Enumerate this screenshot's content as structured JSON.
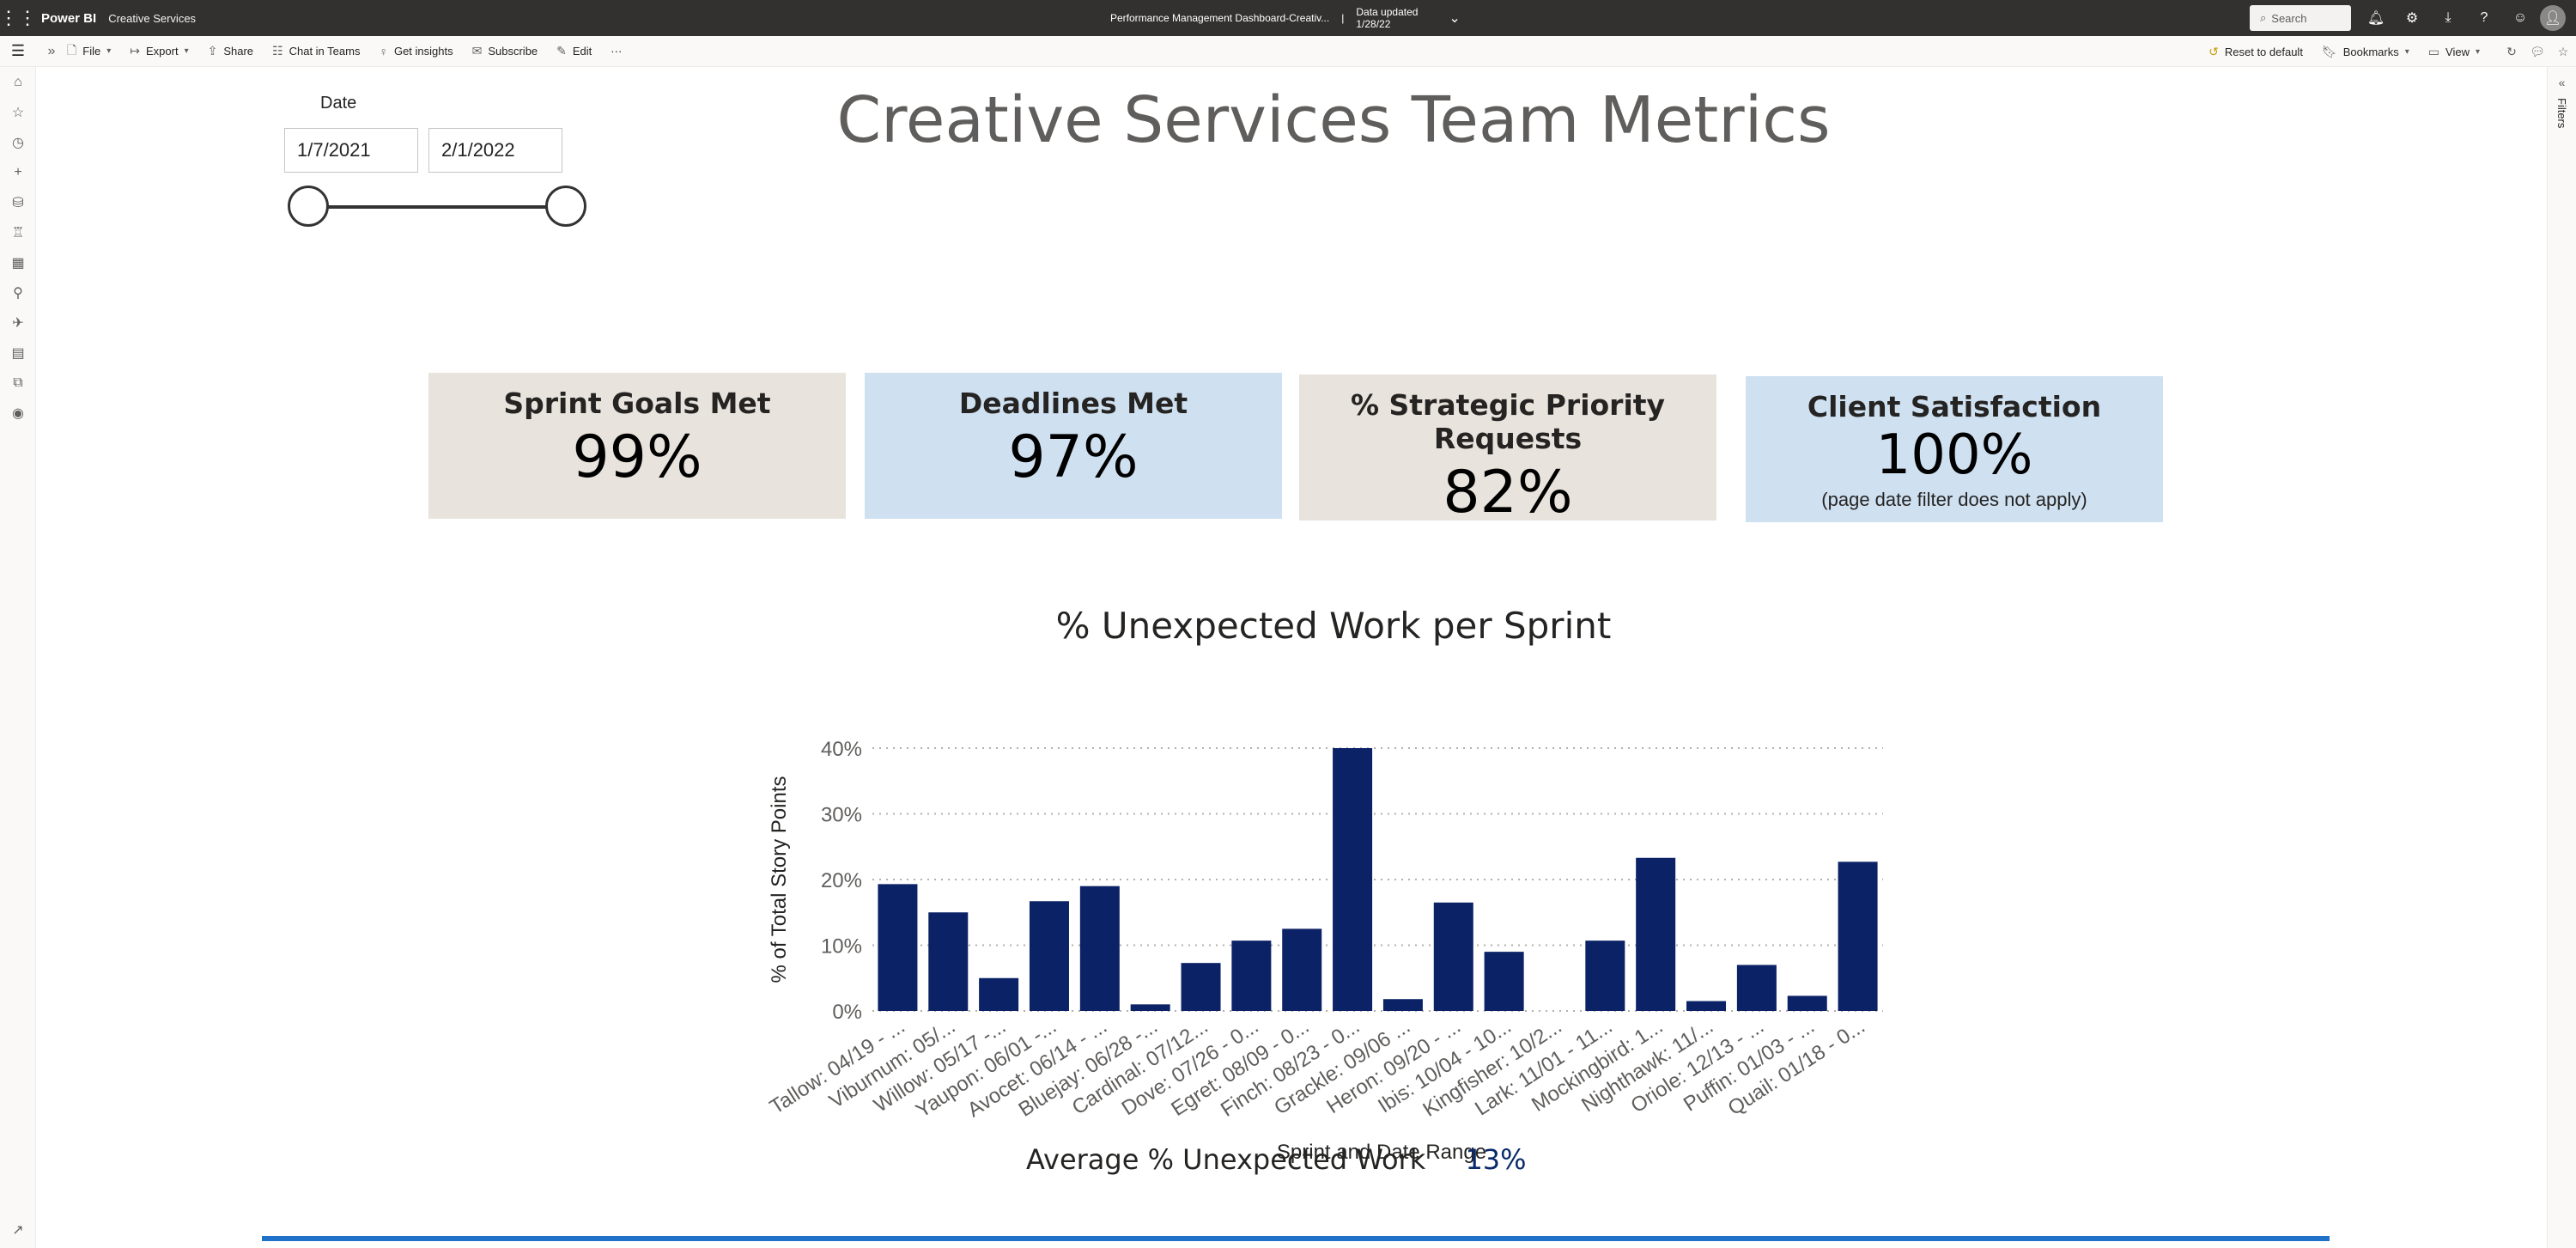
{
  "app": {
    "brand": "Power BI",
    "workspace": "Creative Services",
    "report_name": "Performance Management Dashboard-Creativ...",
    "data_updated_label": "Data updated",
    "data_updated_date": "1/28/22",
    "search_placeholder": "Search"
  },
  "toolbar": {
    "file": "File",
    "export": "Export",
    "share": "Share",
    "chat": "Chat in Teams",
    "insights": "Get insights",
    "subscribe": "Subscribe",
    "edit": "Edit",
    "more": "···",
    "reset": "Reset to default",
    "bookmarks": "Bookmarks",
    "view": "View"
  },
  "filters_pane": {
    "label": "Filters"
  },
  "date_slicer": {
    "title": "Date",
    "start": "1/7/2021",
    "end": "2/1/2022"
  },
  "page_title": "Creative Services Team Metrics",
  "cards": [
    {
      "title": "Sprint Goals Met",
      "value": "99%",
      "note": ""
    },
    {
      "title": "Deadlines Met",
      "value": "97%",
      "note": ""
    },
    {
      "title": "% Strategic Priority Requests",
      "value": "82%",
      "note": ""
    },
    {
      "title": "Client Satisfaction",
      "value": "100%",
      "note": "(page date filter does not apply)"
    }
  ],
  "average": {
    "label": "Average % Unexpected Work",
    "value": "13%"
  },
  "colors": {
    "bar": "#0b2266",
    "card_beige": "#e8e3dc",
    "card_blue": "#cfe0f0",
    "accent_line": "#1f72c8"
  },
  "chart_data": {
    "type": "bar",
    "title": "% Unexpected Work per Sprint",
    "xlabel": "Sprint and Date Range",
    "ylabel": "% of Total Story Points",
    "ylim": [
      0,
      40
    ],
    "yticks": [
      "0%",
      "10%",
      "20%",
      "30%",
      "40%"
    ],
    "grid": true,
    "categories": [
      "Tallow: 04/19 - ...",
      "Viburnum: 05/...",
      "Willow: 05/17 -...",
      "Yaupon: 06/01 -...",
      "Avocet: 06/14 - ...",
      "Bluejay: 06/28 -...",
      "Cardinal: 07/12...",
      "Dove: 07/26 - 0...",
      "Egret: 08/09 - 0...",
      "Finch: 08/23 - 0...",
      "Grackle: 09/06 ...",
      "Heron: 09/20 - ...",
      "Ibis: 10/04 - 10...",
      "Kingfisher: 10/2...",
      "Lark: 11/01 - 11...",
      "Mockingbird: 1...",
      "Nighthawk: 11/...",
      "Oriole: 12/13 - ...",
      "Puffin: 01/03 - ...",
      "Quail: 01/18 - 0..."
    ],
    "values": [
      19.3,
      15.0,
      5.0,
      16.7,
      19.0,
      1.0,
      7.3,
      10.7,
      12.5,
      40.0,
      1.8,
      16.5,
      9.0,
      0,
      10.7,
      23.3,
      1.5,
      7.0,
      2.3,
      22.7
    ]
  }
}
